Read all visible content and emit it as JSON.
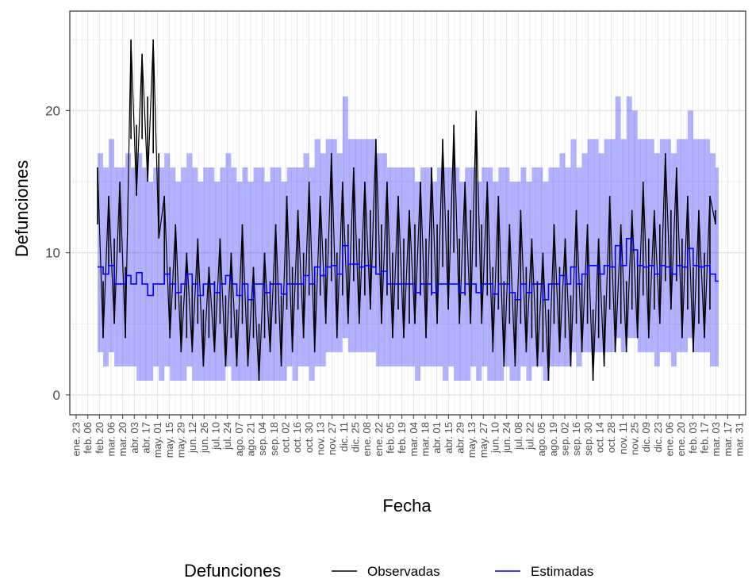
{
  "chart_data": {
    "type": "line",
    "xlabel": "Fecha",
    "ylabel": "Defunciones",
    "ylim": [
      -1.4,
      27.0
    ],
    "y_ticks": [
      0,
      10,
      20
    ],
    "grid": true,
    "legend_placement": "bottom",
    "legend_title": "Defunciones",
    "x_tick_labels": [
      "ene. 23",
      "feb. 06",
      "feb. 20",
      "mar. 06",
      "mar. 20",
      "abr. 03",
      "abr. 17",
      "may. 01",
      "may. 15",
      "may. 29",
      "jun. 12",
      "jun. 26",
      "jul. 10",
      "jul. 24",
      "ago. 07",
      "ago. 21",
      "sep. 04",
      "sep. 18",
      "oct. 02",
      "oct. 16",
      "oct. 30",
      "nov. 13",
      "nov. 27",
      "dic. 11",
      "dic. 25",
      "ene. 08",
      "ene. 22",
      "feb. 05",
      "feb. 19",
      "mar. 04",
      "mar. 18",
      "abr. 01",
      "abr. 15",
      "abr. 29",
      "may. 13",
      "may. 27",
      "jun. 10",
      "jun. 24",
      "jul. 08",
      "jul. 22",
      "ago. 05",
      "ago. 19",
      "sep. 02",
      "sep. 16",
      "sep. 30",
      "oct. 14",
      "oct. 28",
      "nov. 11",
      "nov. 25",
      "dic. 09",
      "dic. 23",
      "ene. 06",
      "ene. 20",
      "feb. 03",
      "feb. 17",
      "mar. 03",
      "mar. 17",
      "mar. 31"
    ],
    "series": [
      {
        "name": "Observadas",
        "color": "#000000",
        "x": [
          0,
          4,
          8,
          12,
          16,
          20,
          24,
          28,
          32,
          36,
          40,
          44,
          48,
          52,
          56,
          60,
          64,
          68,
          72,
          76,
          80,
          84,
          88,
          92,
          96,
          100,
          104,
          108,
          112,
          116,
          120,
          124,
          128,
          132,
          136,
          140,
          144,
          148,
          152,
          156,
          160,
          164,
          168,
          172,
          176,
          180,
          184,
          188,
          192,
          196,
          200,
          204,
          208,
          212,
          216,
          220,
          224,
          228,
          232,
          236,
          240,
          244,
          248,
          252,
          256,
          260,
          264,
          268,
          272,
          276,
          280,
          284,
          288,
          292,
          296,
          300,
          304,
          308,
          312,
          316,
          320,
          324,
          328,
          332,
          336,
          340,
          344,
          348,
          352,
          356,
          360,
          364,
          368,
          372,
          376,
          380,
          384,
          388,
          392,
          396,
          400,
          404,
          408,
          412,
          416,
          420,
          424,
          428,
          432,
          436,
          440,
          444
        ],
        "values": [
          16,
          8,
          14,
          11,
          15,
          9,
          25,
          19,
          24,
          21,
          25,
          17,
          14,
          9,
          12,
          7,
          10,
          8,
          11,
          6,
          9,
          8,
          11,
          7,
          10,
          6,
          12,
          7,
          9,
          5,
          10,
          8,
          12,
          7,
          14,
          9,
          13,
          10,
          15,
          9,
          14,
          11,
          17,
          10,
          15,
          12,
          16,
          11,
          15,
          13,
          18,
          12,
          15,
          10,
          14,
          11,
          13,
          12,
          15,
          11,
          16,
          12,
          18,
          13,
          19,
          11,
          15,
          13,
          20,
          12,
          15,
          9,
          14,
          8,
          12,
          7,
          13,
          9,
          11,
          8,
          10,
          6,
          12,
          9,
          11,
          7,
          13,
          8,
          12,
          6,
          11,
          7,
          14,
          9,
          12,
          8,
          13,
          10,
          15,
          11,
          13,
          12,
          17,
          13,
          16,
          11,
          14,
          9,
          13,
          10,
          14,
          13
        ],
        "lower": [
          12,
          4,
          9,
          5,
          10,
          4,
          18,
          14,
          18,
          15,
          17,
          11,
          8,
          4,
          6,
          3,
          4,
          3,
          5,
          2,
          4,
          3,
          5,
          2,
          4,
          2,
          5,
          2,
          4,
          1,
          4,
          3,
          5,
          2,
          6,
          3,
          6,
          4,
          7,
          3,
          7,
          5,
          8,
          4,
          7,
          5,
          8,
          5,
          7,
          6,
          9,
          5,
          7,
          4,
          6,
          4,
          5,
          5,
          7,
          4,
          7,
          5,
          9,
          6,
          10,
          5,
          7,
          5,
          9,
          5,
          7,
          3,
          6,
          2,
          5,
          2,
          5,
          3,
          4,
          2,
          3,
          1,
          5,
          3,
          4,
          2,
          5,
          3,
          5,
          1,
          4,
          2,
          6,
          3,
          5,
          3,
          6,
          4,
          7,
          4,
          6,
          5,
          8,
          6,
          8,
          4,
          6,
          3,
          5,
          4,
          6,
          12
        ]
      },
      {
        "name": "Estimadas",
        "color": "#0000ff",
        "x": [
          0,
          4,
          8,
          12,
          16,
          20,
          24,
          28,
          32,
          36,
          40,
          44,
          48,
          52,
          56,
          60,
          64,
          68,
          72,
          76,
          80,
          84,
          88,
          92,
          96,
          100,
          104,
          108,
          112,
          116,
          120,
          124,
          128,
          132,
          136,
          140,
          144,
          148,
          152,
          156,
          160,
          164,
          168,
          172,
          176,
          180,
          184,
          188,
          192,
          196,
          200,
          204,
          208,
          212,
          216,
          220,
          224,
          228,
          232,
          236,
          240,
          244,
          248,
          252,
          256,
          260,
          264,
          268,
          272,
          276,
          280,
          284,
          288,
          292,
          296,
          300,
          304,
          308,
          312,
          316,
          320,
          324,
          328,
          332,
          336,
          340,
          344,
          348,
          352,
          356,
          360,
          364,
          368,
          372,
          376,
          380,
          384,
          388,
          392,
          396,
          400,
          404,
          408,
          412,
          416,
          420,
          424,
          428,
          432,
          436,
          440,
          444
        ],
        "values": [
          9.0,
          8.5,
          9.1,
          7.8,
          7.8,
          8.4,
          7.8,
          8.6,
          7.8,
          7.0,
          7.8,
          7.8,
          8.5,
          7.8,
          7.2,
          7.8,
          8.5,
          7.8,
          7.0,
          7.8,
          7.8,
          7.2,
          7.8,
          8.4,
          7.8,
          7.0,
          7.8,
          6.7,
          7.8,
          7.8,
          7.2,
          7.8,
          7.8,
          7.1,
          7.8,
          7.8,
          7.8,
          8.4,
          7.8,
          9.0,
          8.4,
          9.0,
          9.1,
          8.5,
          10.5,
          9.2,
          9.2,
          9.0,
          9.1,
          9.0,
          8.5,
          8.7,
          7.8,
          7.8,
          7.8,
          7.8,
          7.8,
          7.2,
          7.8,
          7.8,
          7.2,
          7.8,
          7.8,
          7.8,
          7.8,
          7.2,
          7.8,
          7.8,
          7.2,
          7.8,
          7.8,
          7.1,
          7.8,
          7.8,
          7.2,
          6.7,
          7.8,
          7.2,
          7.8,
          7.8,
          6.7,
          7.8,
          7.8,
          8.4,
          7.8,
          9.0,
          7.8,
          8.5,
          9.1,
          9.1,
          8.5,
          9.1,
          9.0,
          10.5,
          9.1,
          11.0,
          10.2,
          9.1,
          9.0,
          9.1,
          8.5,
          9.1,
          9.0,
          8.5,
          9.1,
          9.0,
          10.3,
          9.1,
          9.0,
          9.1,
          8.5,
          8.0
        ],
        "band_lower": [
          3,
          2,
          3,
          2,
          2,
          2,
          2,
          1,
          1,
          1,
          2,
          1,
          2,
          1,
          1,
          1,
          2,
          1,
          1,
          1,
          1,
          1,
          1,
          2,
          1,
          1,
          1,
          1,
          1,
          1,
          1,
          1,
          1,
          1,
          2,
          1,
          2,
          2,
          1,
          2,
          2,
          3,
          3,
          3,
          4,
          3,
          3,
          3,
          3,
          3,
          2,
          2,
          2,
          2,
          2,
          2,
          2,
          1,
          2,
          2,
          2,
          2,
          1,
          2,
          1,
          1,
          1,
          2,
          1,
          2,
          1,
          1,
          1,
          2,
          1,
          1,
          2,
          1,
          2,
          2,
          1,
          2,
          2,
          2,
          2,
          3,
          2,
          3,
          3,
          3,
          3,
          3,
          3,
          4,
          3,
          4,
          4,
          3,
          3,
          3,
          2,
          3,
          3,
          2,
          3,
          3,
          4,
          3,
          3,
          3,
          2,
          2
        ],
        "band_upper": [
          17,
          16,
          18,
          16,
          16,
          17,
          16,
          17,
          16,
          15,
          16,
          16,
          17,
          16,
          15,
          16,
          17,
          16,
          15,
          16,
          16,
          15,
          16,
          17,
          16,
          15,
          16,
          15,
          16,
          16,
          15,
          16,
          16,
          15,
          16,
          16,
          16,
          17,
          16,
          18,
          17,
          18,
          18,
          17,
          21,
          18,
          18,
          18,
          18,
          18,
          17,
          17,
          16,
          16,
          16,
          16,
          16,
          15,
          16,
          16,
          15,
          16,
          16,
          16,
          16,
          15,
          16,
          16,
          15,
          16,
          16,
          15,
          16,
          16,
          15,
          15,
          16,
          15,
          16,
          16,
          15,
          16,
          16,
          17,
          16,
          18,
          16,
          17,
          18,
          18,
          17,
          18,
          18,
          21,
          18,
          21,
          20,
          18,
          18,
          18,
          17,
          18,
          18,
          17,
          18,
          18,
          20,
          18,
          18,
          18,
          17,
          16
        ]
      }
    ]
  }
}
